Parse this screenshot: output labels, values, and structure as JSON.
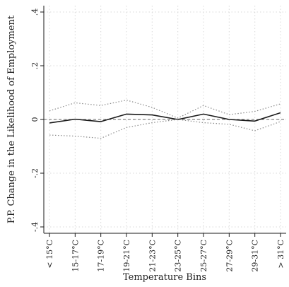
{
  "chart_data": {
    "type": "line",
    "xlabel": "Temperature Bins",
    "ylabel": "P.P. Change in the Likelihood of Employment",
    "categories": [
      "< 15°C",
      "15-17°C",
      "17-19°C",
      "19-21°C",
      "21-23°C",
      "23-25°C",
      "25-27°C",
      "27-29°C",
      "29-31°C",
      "> 31°C"
    ],
    "ylim": [
      -0.42,
      0.42
    ],
    "yticks": [
      -0.4,
      -0.2,
      0,
      0.2,
      0.4
    ],
    "ytick_labels": [
      "-.4",
      "-.2",
      "0",
      ".2",
      ".4"
    ],
    "grid": true,
    "reference_line": 0,
    "series": [
      {
        "role": "estimate",
        "style": "solid",
        "values": [
          -0.013,
          0.001,
          -0.008,
          0.02,
          0.017,
          0.0,
          0.02,
          0.0,
          -0.006,
          0.025
        ]
      },
      {
        "role": "upper-bound",
        "style": "dotted",
        "values": [
          0.032,
          0.062,
          0.052,
          0.072,
          0.045,
          0.005,
          0.052,
          0.018,
          0.03,
          0.058
        ]
      },
      {
        "role": "lower-bound",
        "style": "dotted",
        "values": [
          -0.058,
          -0.062,
          -0.07,
          -0.03,
          -0.012,
          0.0,
          -0.012,
          -0.018,
          -0.042,
          -0.008
        ]
      }
    ],
    "colors": {
      "line": "#1a1a1a",
      "ci": "#8a8a8a",
      "grid": "#d9d9d9",
      "axis": "#1a1a1a",
      "reference": "#666666"
    }
  }
}
